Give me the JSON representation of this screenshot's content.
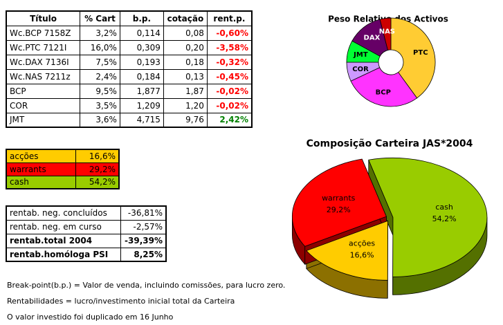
{
  "table": {
    "header": [
      "Título",
      "% Cart",
      "b.p.",
      "cotação",
      "rent.p."
    ],
    "rows": [
      [
        "Wc.BCP 7158Z",
        "3,2%",
        "0,114",
        "0,08",
        "-0,60%"
      ],
      [
        "Wc.PTC 7121I",
        "16,0%",
        "0,309",
        "0,20",
        "-3,58%"
      ],
      [
        "Wc.DAX 7136I",
        "7,5%",
        "0,193",
        "0,18",
        "-0,32%"
      ],
      [
        "Wc.NAS 7211z",
        "2,4%",
        "0,184",
        "0,13",
        "-0,45%"
      ],
      [
        "BCP",
        "9,5%",
        "1,877",
        "1,87",
        "-0,02%"
      ],
      [
        "COR",
        "3,5%",
        "1,209",
        "1,20",
        "-0,02%"
      ],
      [
        "JMT",
        "3,6%",
        "4,715",
        "9,76",
        "2,42%"
      ]
    ]
  },
  "allocation": {
    "rows": [
      [
        "acções",
        "16,6%"
      ],
      [
        "warrants",
        "29,2%"
      ],
      [
        "cash",
        "54,2%"
      ]
    ],
    "colors": [
      "#ffcc00",
      "#ff0000",
      "#99cc00"
    ]
  },
  "returns": {
    "rows": [
      [
        "rentab. neg. concluídos",
        "-36,81%"
      ],
      [
        "rentab. neg. em curso",
        "-2,57%"
      ],
      [
        "rentab.total 2004",
        "-39,39%"
      ],
      [
        "rentab.homóloga PSI",
        "8,25%"
      ]
    ]
  },
  "notes": [
    "Break-point(b.p.) = Valor de venda, incluindo comissões, para lucro zero.",
    "Rentabilidades = lucro/investimento inicial total da Carteira",
    "O valor investido foi duplicado em 16 Junho"
  ],
  "chart_data": [
    {
      "type": "donut",
      "title": "Peso Relativo dos Activos",
      "categories": [
        "PTC",
        "BCP",
        "COR",
        "JMT",
        "DAX",
        "NAS"
      ],
      "values": [
        40,
        28,
        7,
        8,
        13,
        4
      ],
      "colors": [
        "#ffcc33",
        "#ff33ff",
        "#cc99ff",
        "#00ff33",
        "#660066",
        "#cc0000"
      ]
    },
    {
      "type": "pie3d",
      "title": "Composição Carteira JAS*2004",
      "categories": [
        "cash",
        "acções",
        "warrants"
      ],
      "values": [
        54.2,
        16.6,
        29.2
      ],
      "value_labels": [
        "54,2%",
        "16,6%",
        "29,2%"
      ],
      "colors": [
        "#99cc00",
        "#ffcc00",
        "#ff0000"
      ]
    }
  ]
}
